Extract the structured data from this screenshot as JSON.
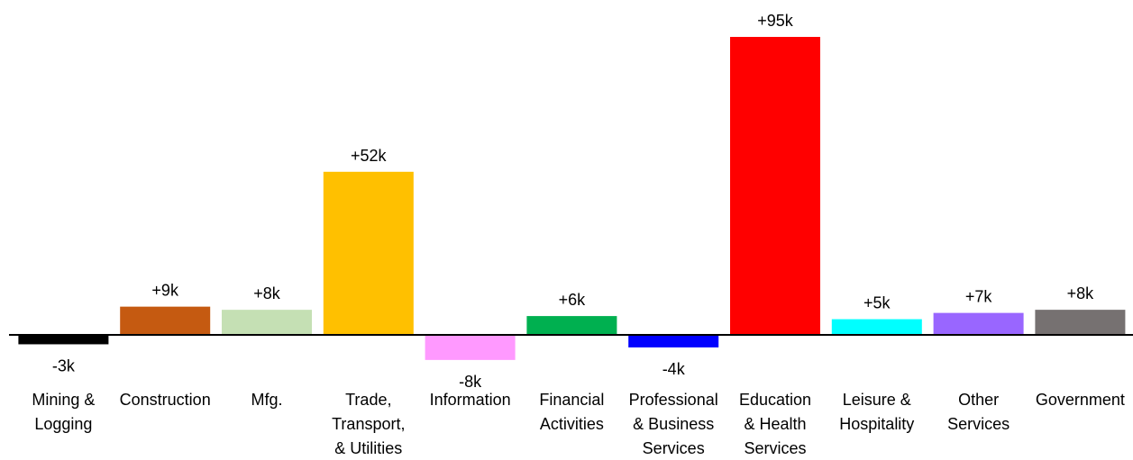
{
  "chart_data": {
    "type": "bar",
    "categories": [
      "Mining &\nLogging",
      "Construction",
      "Mfg.",
      "Trade,\nTransport,\n& Utilities",
      "Information",
      "Financial\nActivities",
      "Professional\n& Business\nServices",
      "Education\n& Health\nServices",
      "Leisure &\nHospitality",
      "Other\nServices",
      "Government"
    ],
    "values": [
      -3,
      9,
      8,
      52,
      -8,
      6,
      -4,
      95,
      5,
      7,
      8
    ],
    "value_labels": [
      "-3k",
      "+9k",
      "+8k",
      "+52k",
      "-8k",
      "+6k",
      "-4k",
      "+95k",
      "+5k",
      "+7k",
      "+8k"
    ],
    "colors": [
      "#000000",
      "#c55a11",
      "#c5e0b4",
      "#ffc000",
      "#ff99ff",
      "#00b050",
      "#0000ff",
      "#ff0000",
      "#00ffff",
      "#9966ff",
      "#767171"
    ]
  }
}
